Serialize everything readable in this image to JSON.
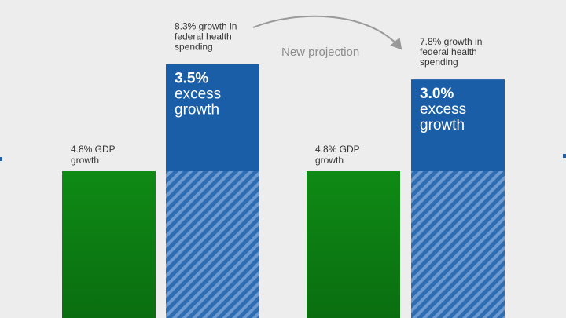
{
  "chart_data": {
    "type": "bar",
    "stacked": true,
    "y_units": "percent growth",
    "colors": {
      "gdp": "#0a7a12",
      "excess": "#1a5ea8",
      "hatch_light": "#5f92cc",
      "hatch_dark": "#2f6db3",
      "annotation": "#999999",
      "background": "#ededed"
    },
    "groups": [
      {
        "gdp_value": 4.8,
        "gdp_label": "4.8% GDP growth",
        "excess_value": 3.5,
        "excess_pct": "3.5%",
        "excess_text": "excess growth",
        "total_value": 8.3,
        "total_label": "8.3% growth in federal health spending"
      },
      {
        "gdp_value": 4.8,
        "gdp_label": "4.8% GDP growth",
        "excess_value": 3.0,
        "excess_pct": "3.0%",
        "excess_text": "excess growth",
        "total_value": 7.8,
        "total_label": "7.8% growth in federal health spending"
      }
    ],
    "annotation": "New projection"
  }
}
